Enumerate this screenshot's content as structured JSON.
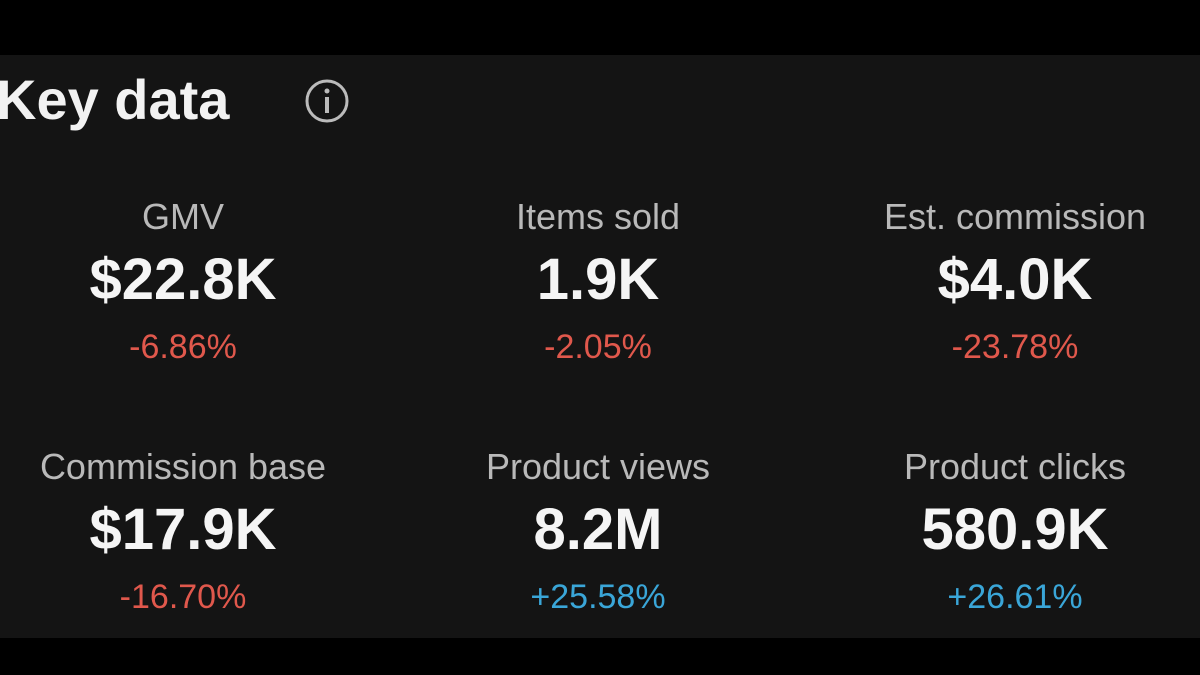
{
  "header": {
    "title": "Key data"
  },
  "metrics": [
    {
      "label": "GMV",
      "value": "$22.8K",
      "change": "-6.86%"
    },
    {
      "label": "Items sold",
      "value": "1.9K",
      "change": "-2.05%"
    },
    {
      "label": "Est. commission",
      "value": "$4.0K",
      "change": "-23.78%"
    },
    {
      "label": "Commission base",
      "value": "$17.9K",
      "change": "-16.70%"
    },
    {
      "label": "Product views",
      "value": "8.2M",
      "change": "+25.58%"
    },
    {
      "label": "Product clicks",
      "value": "580.9K",
      "change": "+26.61%"
    }
  ]
}
